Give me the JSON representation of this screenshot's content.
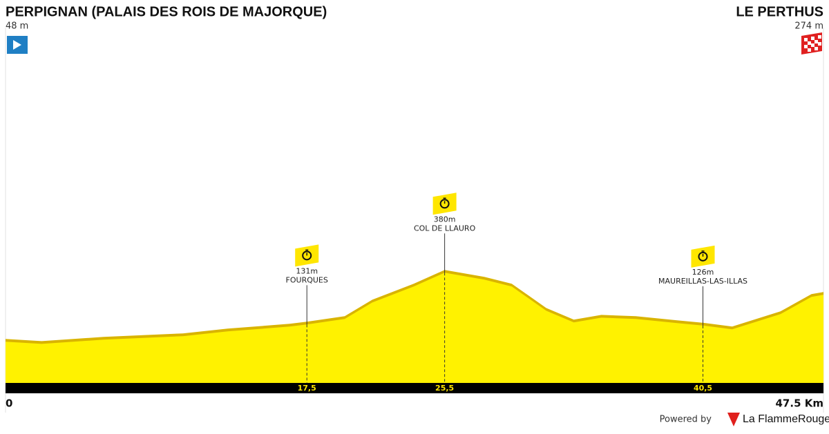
{
  "chart_data": {
    "type": "area",
    "start": {
      "name": "PERPIGNAN (PALAIS DES ROIS DE MAJORQUE)",
      "elevation": "48 m"
    },
    "finish": {
      "name": "LE PERTHUS",
      "elevation": "274 m"
    },
    "x": [
      0,
      2.1,
      5.7,
      10.3,
      12.9,
      16.5,
      17.5,
      19.7,
      21.3,
      23.7,
      25.5,
      27.8,
      29.4,
      31.4,
      33.0,
      34.6,
      36.6,
      39.0,
      40.5,
      42.2,
      45.0,
      46.8,
      47.5
    ],
    "values": [
      48,
      38,
      58,
      75,
      98,
      121,
      131,
      158,
      237,
      314,
      380,
      347,
      314,
      197,
      141,
      164,
      158,
      138,
      126,
      108,
      181,
      264,
      274
    ],
    "color": "#fff200",
    "edge_color": "#d9b400",
    "xlim": [
      0,
      47.5
    ],
    "ylim": [
      -150,
      1360
    ],
    "xticks": [
      0,
      {
        "value": 47.5,
        "label": "47.5 Km"
      }
    ],
    "markers": [
      {
        "km": {
          "value": 17.5,
          "label": "17,5"
        },
        "elevation": "131m",
        "name": "FOURQUES"
      },
      {
        "km": {
          "value": 25.5,
          "label": "25,5"
        },
        "elevation": "380m",
        "name": "COL DE LLAURO"
      },
      {
        "km": {
          "value": 40.5,
          "label": "40,5"
        },
        "elevation": "126m",
        "name": "MAUREILLAS-LAS-ILLAS"
      }
    ],
    "footer": {
      "powered_by": "Powered by",
      "brand": "La FlammeRouge"
    }
  }
}
